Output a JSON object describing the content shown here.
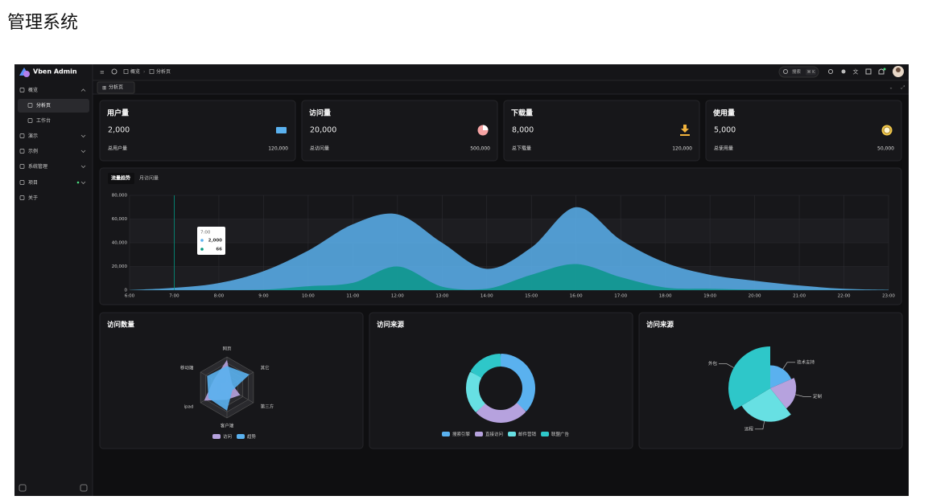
{
  "page_title": "管理系统",
  "sidebar": {
    "logo": "Vben Admin",
    "menu": [
      "概览",
      "分析页",
      "工作台",
      "演示",
      "示例",
      "系统管理",
      "项目",
      "关于"
    ]
  },
  "header": {
    "breadcrumb": [
      "概览",
      "分析页"
    ],
    "search": "搜索",
    "shortcut": "⌘ K"
  },
  "tabs": [
    "分析页"
  ],
  "cards": [
    {
      "title": "用户量",
      "value": "2,000",
      "footer": "总用户量",
      "total": "120,000"
    },
    {
      "title": "访问量",
      "value": "20,000",
      "footer": "总访问量",
      "total": "500,000"
    },
    {
      "title": "下载量",
      "value": "8,000",
      "footer": "总下载量",
      "total": "120,000"
    },
    {
      "title": "使用量",
      "value": "5,000",
      "footer": "总使用量",
      "total": "50,000"
    }
  ],
  "chart_data": [
    {
      "type": "area",
      "tabs": [
        "流量趋势",
        "月访问量"
      ],
      "categories": [
        "6:00",
        "7:00",
        "8:00",
        "9:00",
        "10:00",
        "11:00",
        "12:00",
        "13:00",
        "14:00",
        "15:00",
        "16:00",
        "17:00",
        "18:00",
        "19:00",
        "20:00",
        "21:00",
        "22:00",
        "23:00"
      ],
      "series": [
        {
          "name": "访问",
          "color": "#5ab1ef",
          "values": [
            111,
            2000,
            6000,
            16000,
            33333,
            55555,
            64000,
            40000,
            18000,
            36000,
            70000,
            42444,
            23222,
            13000,
            8000,
            4000,
            1200,
            333
          ]
        },
        {
          "name": "趋势",
          "color": "#019680",
          "values": [
            33,
            66,
            88,
            333,
            3333,
            6200,
            20000,
            3000,
            1200,
            13000,
            22000,
            11000,
            2221,
            1201,
            390,
            198,
            60,
            30
          ]
        }
      ],
      "ylim": [
        0,
        80000
      ],
      "yticks": [
        0,
        {
          "value": 20000,
          "label": "20,000"
        },
        {
          "value": 40000,
          "label": "40,000"
        },
        {
          "value": 60000,
          "label": "60,000"
        },
        {
          "value": 80000,
          "label": "80,000"
        }
      ],
      "grid": true,
      "tooltip": {
        "title": "7:00",
        "items": [
          "2,000",
          "66"
        ]
      }
    },
    {
      "type": "radar",
      "title": "访问数量",
      "indicators": [
        "网页",
        "移动端",
        "ipad",
        "客户端",
        "第三方",
        "其它"
      ],
      "rlim": [
        0,
        100
      ],
      "series": [
        {
          "name": "访问",
          "color": "#b6a2de",
          "values": [
            90,
            50,
            86,
            40,
            50,
            20
          ]
        },
        {
          "name": "趋势",
          "color": "#5ab1ef",
          "values": [
            70,
            75,
            70,
            76,
            20,
            85
          ]
        }
      ]
    },
    {
      "type": "donut",
      "title": "访问来源",
      "categories": [
        "搜索引擎",
        "直接访问",
        "邮件营销",
        "联盟广告"
      ],
      "values": [
        1048,
        735,
        580,
        484
      ],
      "colors": [
        "#5ab1ef",
        "#b6a2de",
        "#67e0e3",
        "#2ec7c9"
      ]
    },
    {
      "type": "rose",
      "title": "访问来源",
      "categories": [
        "技术支持",
        "定制",
        "远程",
        "外包"
      ],
      "values": [
        274,
        310,
        400,
        500
      ],
      "colors": [
        "#5ab1ef",
        "#b6a2de",
        "#67e0e3",
        "#2ec7c9"
      ]
    }
  ]
}
